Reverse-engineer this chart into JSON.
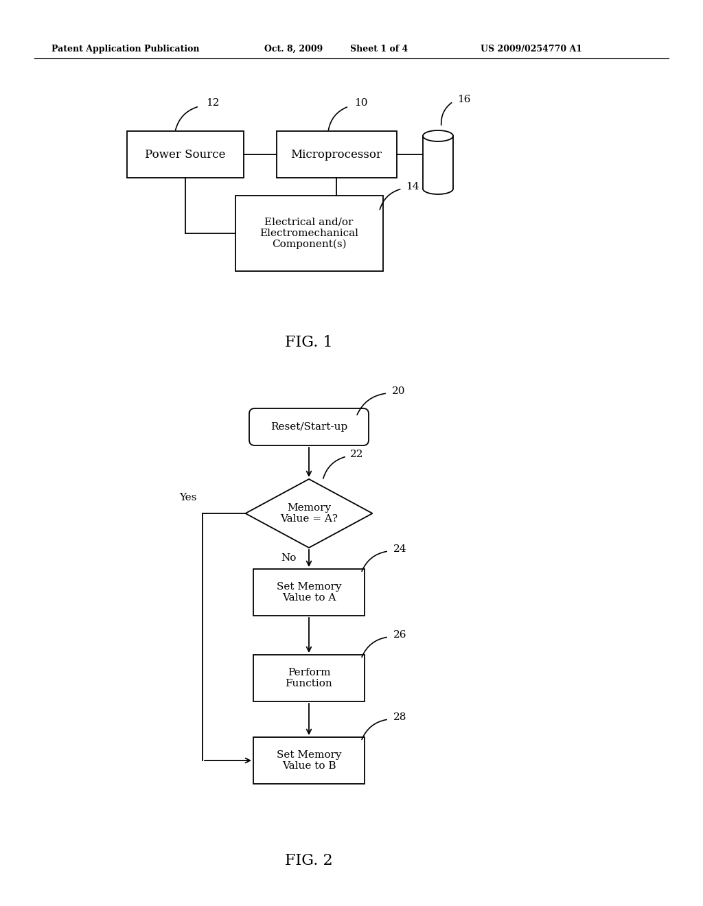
{
  "bg_color": "#ffffff",
  "header_text": "Patent Application Publication",
  "header_date": "Oct. 8, 2009",
  "header_sheet": "Sheet 1 of 4",
  "header_patent": "US 2009/0254770 A1",
  "fig1_label": "FIG. 1",
  "fig2_label": "FIG. 2",
  "lw": 1.3
}
